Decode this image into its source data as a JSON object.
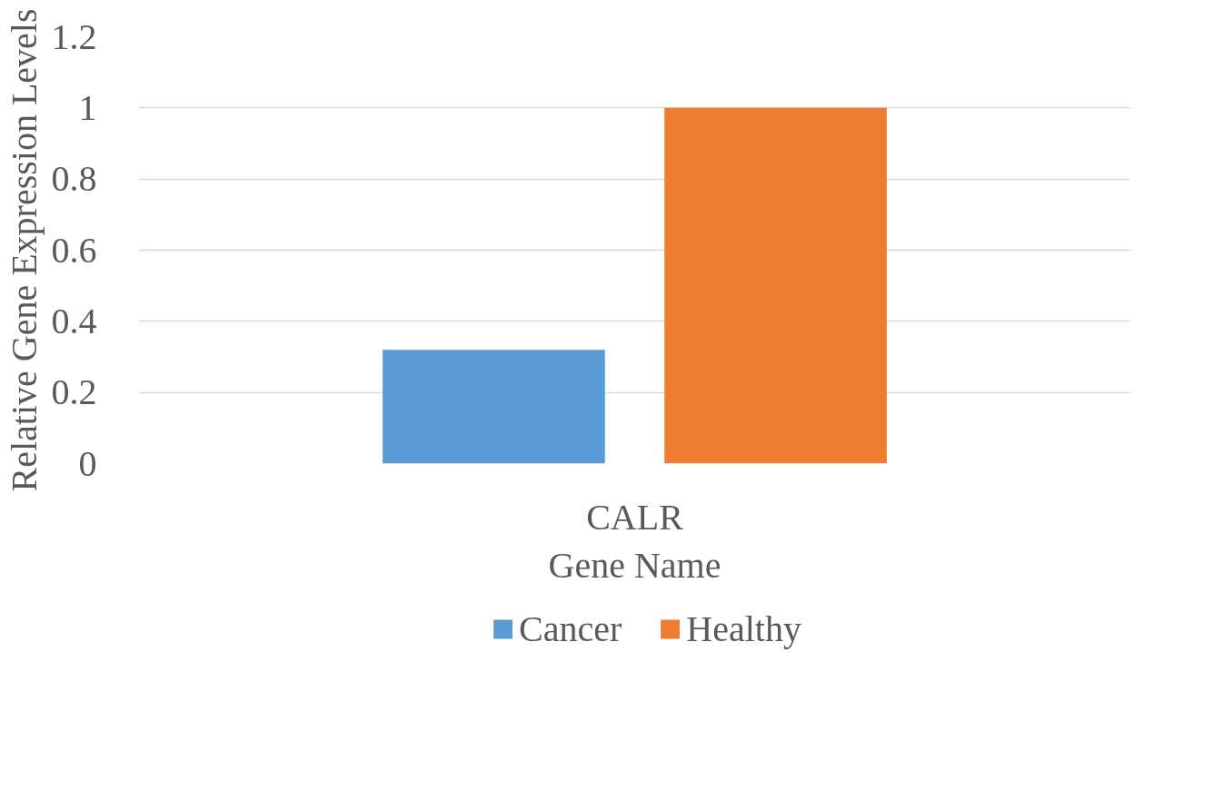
{
  "chart_data": {
    "type": "bar",
    "xlabel": "Gene Name",
    "ylabel": "Relative Gene Expression Levels",
    "categories": [
      "CALR"
    ],
    "series": [
      {
        "name": "Cancer",
        "color": "#5b9bd5",
        "values": [
          0.32
        ]
      },
      {
        "name": "Healthy",
        "color": "#ed7d31",
        "values": [
          1.0
        ]
      }
    ],
    "ylim": [
      0,
      1.2
    ],
    "yticks": [
      0,
      0.2,
      0.4,
      0.6,
      0.8,
      1,
      1.2
    ],
    "grid": "y",
    "legend": "bottom"
  }
}
